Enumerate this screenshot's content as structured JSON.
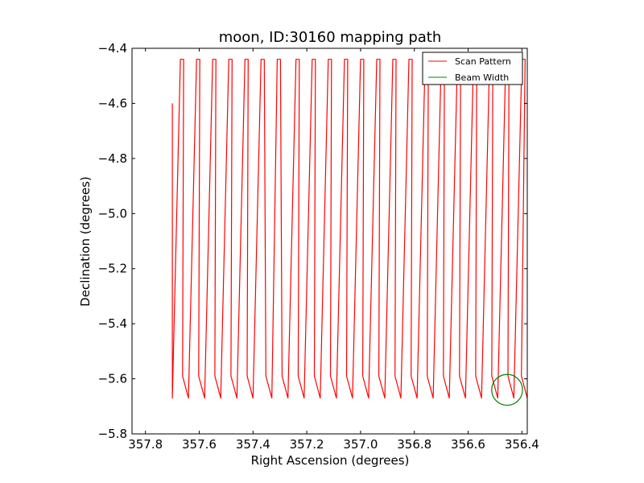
{
  "chart_data": {
    "type": "line",
    "title": "moon, ID:30160 mapping path",
    "xlabel": "Right Ascension (degrees)",
    "ylabel": "Declination (degrees)",
    "xlim": [
      357.85,
      356.38
    ],
    "ylim": [
      -5.8,
      -4.4
    ],
    "x_ticks": [
      357.8,
      357.6,
      357.4,
      357.2,
      357.0,
      356.8,
      356.6,
      356.4
    ],
    "x_tick_labels": [
      "357.8",
      "357.6",
      "357.4",
      "357.2",
      "357.0",
      "356.8",
      "356.6",
      "356.4"
    ],
    "y_ticks": [
      -4.4,
      -4.6,
      -4.8,
      -5.0,
      -5.2,
      -5.4,
      -5.6,
      -5.8
    ],
    "y_tick_labels": [
      "−4.4",
      "−4.6",
      "−4.8",
      "−5.0",
      "−5.2",
      "−5.4",
      "−5.6",
      "−5.8"
    ],
    "grid": false,
    "legend_position": "top-right",
    "series": [
      {
        "name": "Scan Pattern",
        "color": "#ff0000",
        "scan": {
          "start": [
            357.7,
            -4.6
          ],
          "top_dec": -4.44,
          "bottom_dec": -5.67,
          "bottom_xs": [
            357.7,
            357.64,
            357.58,
            357.52,
            357.46,
            357.4,
            357.33,
            357.27,
            357.21,
            357.15,
            357.09,
            357.03,
            356.97,
            356.91,
            356.85,
            356.79,
            356.73,
            356.67,
            356.61,
            356.55,
            356.49,
            356.43,
            356.38
          ],
          "top_xs": [
            357.67,
            357.61,
            357.55,
            357.49,
            357.43,
            357.37,
            357.31,
            357.24,
            357.18,
            357.12,
            357.06,
            357.0,
            356.94,
            356.88,
            356.82,
            356.76,
            356.7,
            356.64,
            356.58,
            356.52,
            356.46,
            356.4
          ],
          "top_offset": 0.012,
          "bottom_offset": 0.022
        }
      },
      {
        "name": "Beam Width",
        "color": "#008000",
        "circle": {
          "center": [
            356.455,
            -5.64
          ],
          "radius_dec": 0.056
        }
      }
    ]
  }
}
